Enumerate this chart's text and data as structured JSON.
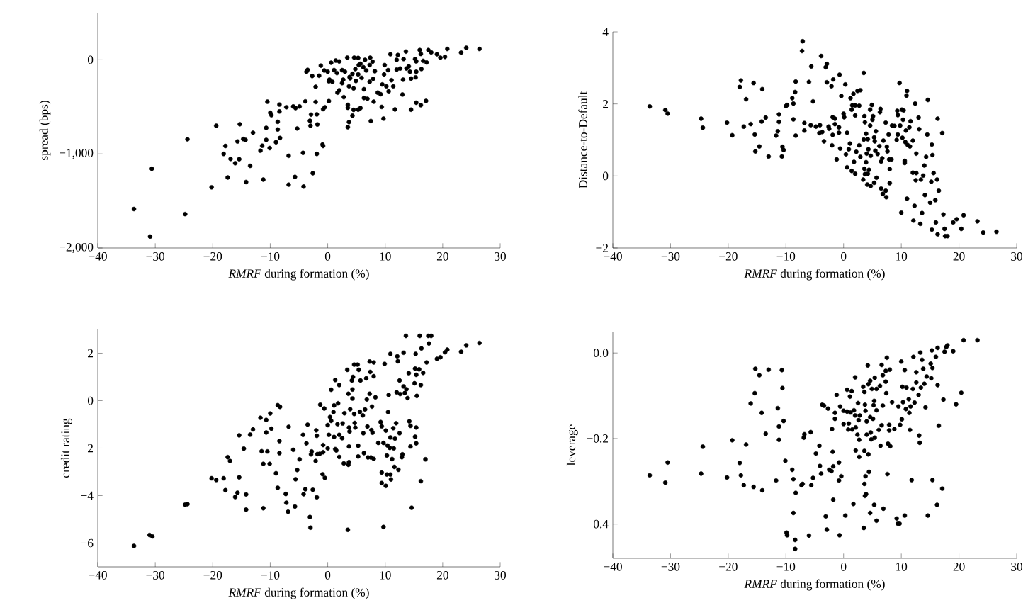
{
  "chart_data": [
    {
      "type": "scatter",
      "xlabel": "*RMRF* during formation (%)",
      "ylabel": "spread (bps)",
      "color": "#000000",
      "marker": "circle",
      "xlim": [
        -40,
        30
      ],
      "xticks": [
        {
          "value": -40,
          "label": "−40"
        },
        {
          "value": -30,
          "label": "−30"
        },
        {
          "value": -20,
          "label": "−20"
        },
        {
          "value": -10,
          "label": "−10"
        },
        0,
        10,
        20,
        30
      ],
      "ylim": [
        -2000,
        500
      ],
      "yticks": [
        {
          "value": -2000,
          "label": "−2,000"
        },
        {
          "value": -1000,
          "label": "−1,000"
        },
        0
      ],
      "x": [
        -33.7,
        -30.9,
        -30.6,
        -24.8,
        -24.4,
        -20.2,
        -19.4,
        -18.1,
        -17.8,
        -17.4,
        -16.9,
        -16.1,
        -15.7,
        -15.3,
        -15.4,
        -14.2,
        -14.7,
        -14.3,
        -13.5,
        -13.0,
        -11.7,
        -11.4,
        -11.2,
        -10.7,
        -10.7,
        -10.5,
        -10.1,
        -10.0,
        -9.8,
        -9.0,
        -8.7,
        -8.7,
        -8.4,
        -8.4,
        -8.3,
        -7.2,
        -6.8,
        -6.8,
        -6.0,
        -5.7,
        -5.6,
        -5.3,
        -4.9,
        -4.3,
        -4.2,
        -3.9,
        -3.1,
        -3.0,
        -2.9,
        -2.6,
        -2.1,
        -1.9,
        -1.9,
        -1.8,
        -2.1,
        -1.5,
        -0.9,
        -0.8,
        -0.8,
        -0.5,
        0.2,
        -3.7,
        -3.5,
        -2.7,
        -1.2,
        -0.6,
        0.0,
        0.3,
        0.6,
        0.8,
        1.1,
        1.4,
        1.7,
        2.0,
        2.0,
        2.5,
        2.5,
        2.8,
        2.7,
        3.4,
        3.5,
        3.5,
        3.7,
        3.5,
        3.7,
        3.8,
        4.3,
        4.3,
        4.5,
        4.5,
        4.6,
        4.9,
        5.3,
        5.3,
        5.7,
        5.4,
        5.9,
        6.2,
        6.3,
        6.5,
        6.3,
        6.9,
        6.7,
        7.3,
        7.4,
        7.5,
        7.8,
        7.9,
        8.0,
        8.2,
        8.7,
        9.2,
        9.4,
        9.5,
        9.7,
        9.8,
        9.9,
        10.2,
        10.5,
        10.6,
        10.9,
        11.1,
        11.4,
        11.7,
        12.0,
        12.0,
        12.2,
        12.6,
        13.0,
        13.1,
        13.2,
        13.6,
        13.7,
        14.1,
        14.3,
        14.5,
        14.5,
        15.2,
        15.3,
        15.4,
        15.4,
        15.4,
        16.0,
        16.2,
        16.3,
        16.2,
        16.6,
        17.1,
        17.2,
        17.5,
        18.0,
        19.0,
        19.6,
        20.4,
        20.8,
        23.2,
        24.1,
        26.4,
        3.0,
        3.9,
        4.8,
        5.3,
        5.7,
        7.3,
        1.6,
        0.2
      ],
      "values": [
        -1586,
        -1879,
        -1158,
        -1640,
        -845,
        -1355,
        -701,
        -1000,
        -916,
        -1251,
        -1054,
        -1099,
        -868,
        -685,
        -1056,
        -1299,
        -842,
        -851,
        -1127,
        -775,
        -966,
        -913,
        -1273,
        -851,
        -724,
        -445,
        -938,
        -563,
        -589,
        -876,
        -741,
        -659,
        -549,
        -476,
        -831,
        -504,
        -1020,
        -1327,
        -496,
        -1245,
        -513,
        -730,
        -496,
        -989,
        -1347,
        -442,
        -648,
        -701,
        -583,
        -1206,
        -448,
        -1000,
        -580,
        -687,
        -287,
        -169,
        -901,
        -916,
        -524,
        -504,
        -439,
        -127,
        -107,
        -172,
        -62,
        -113,
        -127,
        -211,
        -31,
        -234,
        -110,
        -8,
        -349,
        -17,
        -324,
        -110,
        -248,
        -397,
        -211,
        23,
        -479,
        -510,
        -662,
        -716,
        -282,
        -183,
        -149,
        -594,
        -532,
        -304,
        23,
        -225,
        20,
        -530,
        -513,
        -56,
        -192,
        -79,
        -313,
        0,
        -406,
        -414,
        -113,
        -234,
        23,
        -651,
        -20,
        -203,
        -445,
        -121,
        -349,
        -366,
        -501,
        -262,
        -625,
        -155,
        -56,
        -282,
        -110,
        -335,
        59,
        -217,
        -282,
        -527,
        -104,
        0,
        51,
        -93,
        -369,
        -211,
        8,
        87,
        -93,
        -70,
        -127,
        -200,
        -530,
        8,
        -186,
        -456,
        -17,
        -127,
        104,
        -482,
        -98,
        62,
        -11,
        -437,
        -28,
        104,
        79,
        59,
        23,
        31,
        115,
        76,
        127,
        115,
        -127,
        -197,
        -99,
        -155,
        -42,
        -56,
        -141,
        -228
      ]
    },
    {
      "type": "scatter",
      "xlabel": "*RMRF* during formation (%)",
      "ylabel": "Distance-to-Default",
      "color": "#000000",
      "marker": "circle",
      "xlim": [
        -40,
        30
      ],
      "xticks": [
        {
          "value": -40,
          "label": "−40"
        },
        {
          "value": -30,
          "label": "−30"
        },
        {
          "value": -20,
          "label": "−20"
        },
        {
          "value": -10,
          "label": "−10"
        },
        0,
        10,
        20,
        30
      ],
      "ylim": [
        -2,
        4
      ],
      "yticks": [
        {
          "value": -2,
          "label": "−2"
        },
        0,
        2,
        4
      ],
      "x": [
        -33.6,
        -30.9,
        -30.5,
        -24.7,
        -24.4,
        -20.2,
        -19.3,
        -18.0,
        -17.8,
        -17.3,
        -16.9,
        -16.1,
        -15.6,
        -15.4,
        -15.3,
        -14.6,
        -14.2,
        -14.1,
        -13.5,
        -13.0,
        -11.7,
        -11.4,
        -11.2,
        -11.2,
        -10.7,
        -10.6,
        -10.4,
        -10.0,
        -9.8,
        -8.9,
        -8.7,
        -8.7,
        -8.4,
        -8.3,
        -8.3,
        -7.2,
        -7.1,
        -6.8,
        -6.8,
        -6.0,
        -5.7,
        -5.6,
        -5.3,
        -4.8,
        -4.2,
        -4.1,
        -3.9,
        -3.7,
        -3.4,
        -3.1,
        -2.9,
        -2.9,
        -2.6,
        -2.5,
        -2.1,
        -2.0,
        -1.9,
        -1.9,
        -1.8,
        -1.5,
        -1.5,
        -1.2,
        -0.8,
        -0.8,
        -0.7,
        -0.6,
        -0.4,
        0.0,
        0.1,
        0.3,
        0.4,
        0.6,
        0.6,
        0.9,
        1.1,
        1.2,
        1.4,
        1.4,
        1.5,
        1.7,
        1.8,
        2.0,
        2.0,
        2.0,
        2.2,
        2.4,
        2.7,
        2.7,
        2.9,
        2.9,
        3.4,
        3.5,
        3.5,
        3.6,
        3.7,
        3.6,
        3.7,
        3.9,
        3.9,
        4.0,
        4.1,
        4.2,
        4.2,
        4.3,
        4.4,
        4.6,
        4.6,
        4.7,
        4.7,
        4.9,
        5.0,
        5.1,
        5.3,
        5.3,
        5.4,
        5.5,
        5.6,
        5.7,
        5.9,
        6.2,
        6.3,
        6.4,
        6.5,
        6.5,
        6.7,
        6.8,
        6.9,
        7.3,
        7.3,
        7.4,
        7.5,
        7.6,
        7.8,
        7.9,
        8.0,
        8.0,
        8.3,
        8.4,
        8.8,
        9.2,
        9.3,
        9.4,
        9.4,
        9.7,
        9.8,
        10.0,
        10.1,
        10.2,
        10.3,
        10.4,
        10.6,
        10.6,
        10.7,
        10.8,
        10.9,
        11.0,
        11.0,
        11.1,
        11.4,
        11.5,
        11.6,
        12.0,
        12.0,
        12.1,
        12.3,
        12.4,
        12.5,
        12.6,
        12.6,
        13.0,
        13.1,
        13.3,
        13.4,
        13.6,
        13.8,
        14.0,
        14.1,
        14.3,
        14.5,
        14.6,
        15.0,
        15.2,
        15.3,
        15.3,
        15.4,
        15.6,
        15.9,
        16.0,
        16.2,
        16.3,
        16.3,
        16.5,
        17.1,
        17.3,
        17.5,
        17.6,
        18.0,
        19.0,
        19.6,
        20.4,
        20.8,
        23.2,
        24.2,
        26.5
      ],
      "values": [
        1.93,
        1.83,
        1.73,
        1.59,
        1.34,
        1.48,
        1.13,
        2.47,
        2.65,
        1.37,
        2.13,
        1.44,
        2.58,
        1.15,
        0.68,
        0.82,
        1.51,
        2.41,
        1.62,
        0.54,
        1.12,
        1.24,
        1.5,
        1.71,
        0.54,
        0.81,
        0.72,
        1.94,
        1.97,
        2.16,
        2.01,
        1.57,
        2.33,
        2.62,
        1.12,
        3.47,
        3.74,
        1.47,
        1.26,
        2.61,
        1.41,
        3.04,
        2.07,
        1.37,
        1.19,
        1.41,
        3.33,
        1.22,
        0.96,
        3.02,
        3.11,
        2.6,
        1.37,
        1.31,
        2.49,
        0.85,
        1.14,
        1.63,
        2.68,
        1.59,
        1.44,
        0.46,
        1.35,
        1.2,
        2.81,
        0.76,
        2.22,
        1.73,
        1.63,
        2.54,
        0.6,
        1.2,
        0.24,
        0.74,
        0.9,
        2.16,
        1.84,
        0.14,
        1.96,
        2.28,
        0.39,
        1.68,
        0.06,
        1.96,
        0.67,
        2.36,
        1.95,
        0.85,
        2.38,
        0.53,
        -0.1,
        2.86,
        1.01,
        1.66,
        1.49,
        0.2,
        0.05,
        0.38,
        1.17,
        0.62,
        -0.24,
        1.02,
        0.06,
        0.74,
        0.17,
        1.4,
        1.84,
        -0.28,
        0.56,
        1.97,
        1.56,
        1.66,
        1.07,
        -0.19,
        0.96,
        0.7,
        1.24,
        -0.05,
        0.61,
        0.83,
        1.77,
        1.86,
        0.4,
        -0.35,
        0.49,
        -0.5,
        0.98,
        -0.41,
        1.48,
        -0.59,
        0.81,
        0.68,
        1.15,
        0.46,
        -0.2,
        0.19,
        0.46,
        1.4,
        1.39,
        1.0,
        1.81,
        1.15,
        1.69,
        2.58,
        1.4,
        -1.02,
        1.84,
        1.06,
        1.56,
        1.82,
        0.42,
        0.36,
        0.94,
        1.26,
        2.23,
        -0.63,
        2.36,
        0.86,
        1.35,
        0.82,
        1.52,
        0.98,
        0.09,
        -1.24,
        -0.83,
        2.01,
        -0.12,
        0.62,
        0.08,
        1.62,
        1.3,
        -1.33,
        -0.1,
        -1.03,
        0.01,
        0.29,
        -0.53,
        0.53,
        1.15,
        2.11,
        -0.74,
        -0.16,
        0.87,
        -1.49,
        0.58,
        0.08,
        -0.67,
        -1.29,
        -0.1,
        -1.62,
        1.59,
        -0.41,
        1.19,
        -1.07,
        -1.47,
        -1.67,
        -1.67,
        -1.29,
        -1.2,
        -1.47,
        -1.09,
        -1.26,
        -1.57,
        -1.55
      ]
    },
    {
      "type": "scatter",
      "xlabel": "*RMRF* during formation (%)",
      "ylabel": "credit rating",
      "color": "#000000",
      "marker": "circle",
      "xlim": [
        -40,
        30
      ],
      "xticks": [
        {
          "value": -40,
          "label": "−40"
        },
        {
          "value": -30,
          "label": "−30"
        },
        {
          "value": -20,
          "label": "−20"
        },
        {
          "value": -10,
          "label": "−10"
        },
        0,
        10,
        20,
        30
      ],
      "ylim": [
        -7,
        3
      ],
      "yticks": [
        {
          "value": -6,
          "label": "−6"
        },
        {
          "value": -4,
          "label": "−4"
        },
        {
          "value": -2,
          "label": "−2"
        },
        0,
        2
      ],
      "x": [
        -33.7,
        -31.0,
        -30.5,
        -24.8,
        -24.4,
        -20.2,
        -19.4,
        -18.1,
        -17.8,
        -17.4,
        -17.0,
        -16.1,
        -15.7,
        -15.4,
        -15.4,
        -14.6,
        -14.2,
        -14.2,
        -13.5,
        -13.0,
        -11.7,
        -11.5,
        -11.2,
        -11.2,
        -10.7,
        -10.7,
        -10.5,
        -10.1,
        -10.0,
        -9.8,
        -9.0,
        -8.7,
        -8.3,
        -8.7,
        -8.4,
        -8.4,
        -7.3,
        -7.2,
        -6.9,
        -6.8,
        -6.0,
        -5.7,
        -5.6,
        -5.3,
        -4.9,
        -4.3,
        -4.2,
        -3.9,
        -3.7,
        -3.5,
        -3.1,
        -3.0,
        -2.9,
        -2.8,
        -2.6,
        -2.1,
        -2.0,
        -1.9,
        -1.9,
        -1.8,
        -1.4,
        -1.3,
        -0.8,
        -0.8,
        -0.9,
        -0.6,
        -0.5,
        0.0,
        0.0,
        0.2,
        0.4,
        0.6,
        0.6,
        1.0,
        1.1,
        1.1,
        1.3,
        1.3,
        1.5,
        1.7,
        1.8,
        2.0,
        2.0,
        2.0,
        2.5,
        2.6,
        2.8,
        2.9,
        3.4,
        3.5,
        3.6,
        3.6,
        3.7,
        3.7,
        3.7,
        3.8,
        3.9,
        4.2,
        4.3,
        4.3,
        4.4,
        4.6,
        4.6,
        4.7,
        4.8,
        5.2,
        5.3,
        5.3,
        5.4,
        5.6,
        5.7,
        6.1,
        6.2,
        6.3,
        6.5,
        6.7,
        6.8,
        6.9,
        7.0,
        7.3,
        7.3,
        7.4,
        7.5,
        7.6,
        7.7,
        7.8,
        8.0,
        8.0,
        8.0,
        8.3,
        8.8,
        9.2,
        9.4,
        9.4,
        9.4,
        9.7,
        9.7,
        9.9,
        10.1,
        10.1,
        10.3,
        10.3,
        10.4,
        10.5,
        10.6,
        10.8,
        10.9,
        10.9,
        10.9,
        11.0,
        11.2,
        11.4,
        11.5,
        11.6,
        11.7,
        11.9,
        12.0,
        12.1,
        12.2,
        12.3,
        12.5,
        12.5,
        12.6,
        12.9,
        13.0,
        13.2,
        13.2,
        13.4,
        13.6,
        13.7,
        13.9,
        14.1,
        14.2,
        14.4,
        14.4,
        14.6,
        15.1,
        15.2,
        15.3,
        15.2,
        15.4,
        15.4,
        15.4,
        15.5,
        15.9,
        16.0,
        16.2,
        16.2,
        16.3,
        16.6,
        17.0,
        17.2,
        17.5,
        17.6,
        18.0,
        19.0,
        19.6,
        20.4,
        20.8,
        23.2,
        24.1,
        26.4
      ],
      "values": [
        -6.12,
        -5.66,
        -5.72,
        -4.38,
        -4.36,
        -3.27,
        -3.34,
        -3.27,
        -3.77,
        -2.38,
        -2.54,
        -4.06,
        -3.88,
        -1.46,
        -3.23,
        -2.02,
        -3.95,
        -4.59,
        -1.43,
        -1.21,
        -0.72,
        -2.13,
        -2.66,
        -4.53,
        -0.81,
        -1.34,
        -2.14,
        -2.66,
        -0.54,
        -1.18,
        -3.06,
        -0.19,
        -0.26,
        -3.67,
        -1.7,
        -2.21,
        -3.93,
        -4.3,
        -4.68,
        -1.1,
        -2.07,
        -4.46,
        -3.31,
        -2.92,
        -2.47,
        -1.44,
        -3.94,
        -3.73,
        -1.8,
        -1.01,
        -4.9,
        -5.35,
        -2.26,
        -2.14,
        -3.75,
        -2.54,
        -1.25,
        -1.48,
        -4.07,
        -2.25,
        -2.24,
        -0.17,
        -1.87,
        -2.17,
        -3.1,
        -0.33,
        -3.25,
        -2.01,
        -1.03,
        -1.44,
        -0.69,
        0.46,
        -0.85,
        -0.48,
        -0.2,
        -1.53,
        -2.04,
        0.87,
        -2.1,
        -0.99,
        -0.11,
        0.66,
        -1.44,
        -2.37,
        -1.58,
        -0.96,
        -2.64,
        -0.53,
        1.3,
        -5.44,
        -2.7,
        0.29,
        -1.93,
        -2.59,
        -1.13,
        -1.3,
        -0.36,
        0.85,
        0.47,
        0.09,
        1.0,
        1.52,
        -0.56,
        -0.94,
        -1.13,
        1.52,
        -1.9,
        -2.35,
        1.3,
        -0.47,
        0.85,
        -0.62,
        -1.37,
        -2.21,
        -0.37,
        0.94,
        0.05,
        -1.09,
        -2.39,
        0.29,
        1.65,
        1.21,
        -2.39,
        -1.24,
        -0.25,
        -1.35,
        1.61,
        1.03,
        -2.45,
        0.14,
        -1.78,
        -0.9,
        -1.08,
        -3.03,
        -3.47,
        -1.78,
        -5.32,
        1.55,
        -1.26,
        -3.59,
        -3.11,
        -2.31,
        -1.89,
        -0.48,
        0.24,
        -1.99,
        -1.55,
        1.97,
        -3.11,
        -3.32,
        -2.46,
        -1.16,
        -2.01,
        -2.79,
        -1.6,
        -0.95,
        0.35,
        1.87,
        1.66,
        -2.91,
        0.85,
        -1.37,
        0.28,
        -2.38,
        -2.26,
        2.02,
        0.6,
        0.32,
        2.73,
        0.48,
        0.11,
        1.16,
        -0.87,
        -1.06,
        -1.93,
        -4.51,
        0.73,
        1.35,
        1.97,
        -1.52,
        -1.8,
        -1.13,
        1.09,
        0.2,
        1.32,
        2.73,
        -3.39,
        0.66,
        2.2,
        1.17,
        -2.47,
        1.61,
        2.73,
        2.41,
        2.73,
        1.76,
        1.83,
        2.04,
        2.15,
        2.06,
        2.33,
        2.43
      ]
    },
    {
      "type": "scatter",
      "xlabel": "*RMRF* during formation (%)",
      "ylabel": "leverage",
      "color": "#000000",
      "marker": "circle",
      "xlim": [
        -40,
        30
      ],
      "xticks": [
        {
          "value": -40,
          "label": "−40"
        },
        {
          "value": -30,
          "label": "−30"
        },
        {
          "value": -20,
          "label": "−20"
        },
        {
          "value": -10,
          "label": "−10"
        },
        0,
        10,
        20,
        30
      ],
      "ylim": [
        -0.48,
        0.05
      ],
      "yticks": [
        {
          "value": -0.4,
          "label": "−0.4"
        },
        {
          "value": -0.2,
          "label": "−0.2"
        },
        {
          "value": 0,
          "label": "0.0"
        }
      ],
      "x": [
        -33.6,
        -30.9,
        -30.5,
        -24.7,
        -24.4,
        -20.2,
        -19.3,
        -18.0,
        -17.8,
        -17.3,
        -16.9,
        -16.1,
        -15.6,
        -15.4,
        -15.3,
        -14.6,
        -14.2,
        -14.1,
        -13.5,
        -13.0,
        -11.7,
        -11.4,
        -11.2,
        -11.2,
        -10.7,
        -10.6,
        -10.4,
        -10.1,
        -9.9,
        -9.8,
        -8.9,
        -8.7,
        -8.7,
        -8.4,
        -8.4,
        -8.3,
        -7.3,
        -7.1,
        -6.9,
        -6.8,
        -6.0,
        -5.7,
        -5.6,
        -5.3,
        -4.8,
        -4.2,
        -4.1,
        -3.9,
        -3.7,
        -3.4,
        -3.1,
        -2.9,
        -2.7,
        -2.5,
        -2.1,
        -2.0,
        -1.9,
        -1.8,
        -1.8,
        -1.5,
        -1.5,
        -1.2,
        -0.8,
        -0.8,
        -0.7,
        -0.6,
        -0.4,
        0.0,
        0.0,
        0.3,
        0.6,
        0.6,
        0.8,
        0.9,
        1.1,
        1.2,
        1.4,
        1.5,
        1.7,
        1.8,
        2.0,
        2.0,
        2.1,
        2.1,
        2.4,
        2.5,
        2.7,
        2.7,
        2.8,
        2.6,
        3.4,
        3.6,
        3.5,
        3.6,
        3.7,
        3.6,
        3.7,
        3.8,
        3.8,
        3.9,
        4.0,
        4.0,
        4.2,
        4.3,
        4.3,
        4.4,
        4.6,
        4.6,
        4.6,
        4.7,
        4.8,
        4.9,
        5.1,
        5.2,
        5.3,
        5.3,
        5.4,
        5.4,
        5.7,
        5.7,
        5.7,
        6.1,
        6.3,
        6.4,
        6.6,
        6.6,
        6.8,
        6.8,
        6.9,
        7.3,
        7.4,
        7.5,
        7.3,
        7.6,
        7.7,
        7.9,
        7.9,
        8.0,
        8.1,
        8.4,
        8.8,
        9.2,
        9.4,
        9.7,
        9.5,
        9.8,
        10.0,
        10.1,
        10.2,
        10.3,
        10.6,
        10.6,
        10.8,
        10.9,
        11.3,
        11.4,
        11.5,
        11.6,
        11.8,
        12.0,
        12.1,
        12.3,
        12.6,
        12.6,
        13.0,
        13.1,
        13.2,
        13.3,
        13.4,
        13.6,
        13.8,
        14.0,
        14.2,
        14.4,
        14.6,
        15.1,
        15.2,
        15.4,
        15.4,
        15.3,
        16.0,
        16.2,
        16.3,
        16.3,
        16.5,
        17.1,
        17.3,
        17.5,
        17.8,
        18.0,
        19.0,
        19.5,
        20.4,
        20.8,
        23.2
      ],
      "values": [
        -0.286,
        -0.303,
        -0.256,
        -0.282,
        -0.219,
        -0.291,
        -0.204,
        -0.257,
        -0.286,
        -0.309,
        -0.214,
        -0.118,
        -0.313,
        -0.094,
        -0.037,
        -0.052,
        -0.14,
        -0.321,
        -0.189,
        -0.039,
        -0.298,
        -0.129,
        -0.172,
        -0.203,
        -0.04,
        -0.082,
        -0.159,
        -0.252,
        -0.42,
        -0.426,
        -0.273,
        -0.374,
        -0.295,
        -0.437,
        -0.458,
        -0.327,
        -0.309,
        -0.306,
        -0.198,
        -0.19,
        -0.427,
        -0.185,
        -0.309,
        -0.292,
        -0.235,
        -0.217,
        -0.264,
        -0.282,
        -0.121,
        -0.123,
        -0.382,
        -0.413,
        -0.13,
        -0.273,
        -0.276,
        -0.178,
        -0.231,
        -0.265,
        -0.343,
        -0.14,
        -0.154,
        -0.098,
        -0.256,
        -0.298,
        -0.426,
        -0.125,
        -0.288,
        -0.166,
        -0.135,
        -0.38,
        -0.086,
        -0.137,
        -0.179,
        -0.165,
        -0.102,
        -0.139,
        -0.089,
        -0.179,
        -0.353,
        -0.134,
        -0.057,
        -0.146,
        -0.228,
        -0.174,
        -0.191,
        -0.117,
        -0.203,
        -0.243,
        -0.146,
        -0.157,
        -0.079,
        -0.229,
        -0.409,
        -0.306,
        -0.334,
        -0.091,
        -0.121,
        -0.135,
        -0.288,
        -0.33,
        -0.16,
        -0.191,
        -0.029,
        -0.237,
        -0.073,
        -0.278,
        -0.374,
        -0.065,
        -0.15,
        -0.186,
        -0.202,
        -0.084,
        -0.154,
        -0.122,
        -0.355,
        -0.112,
        -0.058,
        -0.198,
        -0.084,
        -0.134,
        -0.392,
        -0.18,
        -0.077,
        -0.217,
        -0.028,
        -0.169,
        -0.123,
        -0.052,
        -0.364,
        -0.067,
        -0.094,
        -0.011,
        -0.042,
        -0.283,
        -0.212,
        -0.168,
        -0.181,
        -0.039,
        -0.218,
        -0.115,
        -0.178,
        -0.387,
        -0.399,
        -0.399,
        -0.125,
        -0.168,
        -0.02,
        -0.155,
        -0.079,
        -0.115,
        -0.38,
        -0.04,
        -0.131,
        -0.081,
        -0.108,
        -0.14,
        -0.18,
        -0.125,
        -0.297,
        -0.084,
        -0.009,
        -0.116,
        -0.045,
        -0.069,
        -0.098,
        -0.193,
        -0.21,
        0.001,
        -0.081,
        -0.016,
        -0.037,
        -0.072,
        -0.127,
        -0.055,
        -0.38,
        -0.025,
        -0.059,
        -0.297,
        -0.035,
        0.006,
        -0.009,
        -0.355,
        0.012,
        -0.075,
        -0.17,
        -0.317,
        -0.109,
        0.003,
        0.014,
        0.018,
        0.004,
        -0.12,
        -0.093,
        0.03,
        0.03
      ]
    }
  ]
}
